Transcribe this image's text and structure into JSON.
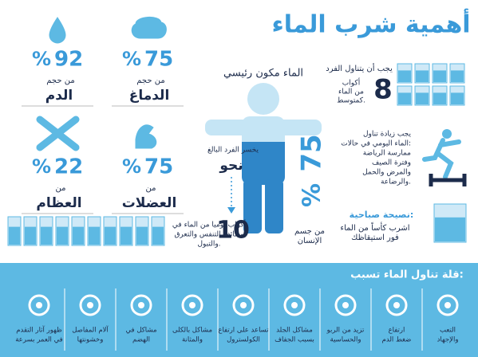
{
  "title": "أهمية شرب الماء",
  "stats": [
    {
      "number": 92,
      "unit": "%",
      "prefix": "من حجم",
      "label": "الدم"
    },
    {
      "number": 75,
      "unit": "%",
      "prefix": "من حجم",
      "label": "الدماغ"
    },
    {
      "number": 22,
      "unit": "%",
      "prefix": "من",
      "label": "العظام"
    },
    {
      "number": 75,
      "unit": "%",
      "prefix": "من",
      "label": "العضلات"
    }
  ],
  "body": {
    "caption": "الماء مكون رئيسي",
    "number": 75,
    "unit": "%",
    "label_lines": [
      "من جسم",
      "الإنسان"
    ]
  },
  "intake": {
    "heading": "يجب أن يتناول الفرد",
    "number": 8,
    "text_lines": [
      "أكواب",
      "من الماء",
      "كمتوسط."
    ]
  },
  "increase": {
    "lines": [
      "يجب زيادة تناول",
      "الماء اليومي في حالات:",
      "ممارسة الرياضة",
      "وفترة الصيف",
      "والمرض والحمل",
      "والرضاعة."
    ]
  },
  "loss": {
    "heading": "يخسر الفرد البالغ",
    "approx": "نحو",
    "number": 10,
    "lines": [
      "أكواب يوميا من الماء في",
      "وظائف التنفس والتعرق",
      "والتبول."
    ]
  },
  "tip": {
    "heading": "نصيحة صباحية:",
    "lines": [
      "اشرب كأساً من الماء",
      "فور استيقاظك"
    ]
  },
  "effects": {
    "heading": "قلة تناول الماء تسبب:",
    "items": [
      {
        "lines": [
          "التعب",
          "والإجهاد"
        ]
      },
      {
        "lines": [
          "ارتفاع",
          "ضغط الدم"
        ]
      },
      {
        "lines": [
          "تزيد من الربو",
          "والحساسية"
        ]
      },
      {
        "lines": [
          "مشاكل الجلد",
          "بسبب الجفاف"
        ]
      },
      {
        "lines": [
          "تساعد على ارتفاع",
          "الكولسترول"
        ]
      },
      {
        "lines": [
          "مشاكل بالكلى",
          "والمثانة"
        ]
      },
      {
        "lines": [
          "مشاكل في",
          "الهضم"
        ]
      },
      {
        "lines": [
          "آلام المفاصل",
          "وخشونتها"
        ]
      },
      {
        "lines": [
          "ظهور آثار التقدم",
          "في العمر بسرعة"
        ]
      }
    ]
  }
}
